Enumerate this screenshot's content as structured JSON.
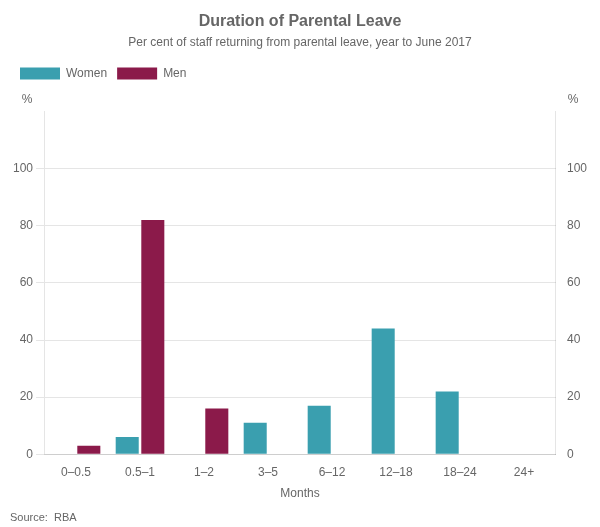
{
  "chart_data": {
    "type": "bar",
    "title": "Duration of Parental Leave",
    "subtitle": "Per cent of staff returning from parental leave, year to June 2017",
    "xlabel": "Months",
    "ylabel": "%",
    "y2label": "%",
    "source": "Source:  RBA",
    "categories": [
      "0–0.5",
      "0.5–1",
      "1–2",
      "3–5",
      "6–12",
      "12–18",
      "18–24",
      "24+"
    ],
    "series": [
      {
        "name": "Women",
        "color": "#3a9faf",
        "values": [
          0,
          6,
          0,
          11,
          17,
          44,
          22,
          0
        ]
      },
      {
        "name": "Men",
        "color": "#8b1a4a",
        "values": [
          3,
          82,
          16,
          0,
          0,
          0,
          0,
          0
        ]
      }
    ],
    "ylim": [
      0,
      120
    ],
    "yticks": [
      0,
      20,
      40,
      60,
      80,
      100
    ],
    "y2lim": [
      0,
      120
    ],
    "y2ticks": [
      0,
      20,
      40,
      60,
      80,
      100
    ],
    "grid": true,
    "legend": "upper left"
  }
}
